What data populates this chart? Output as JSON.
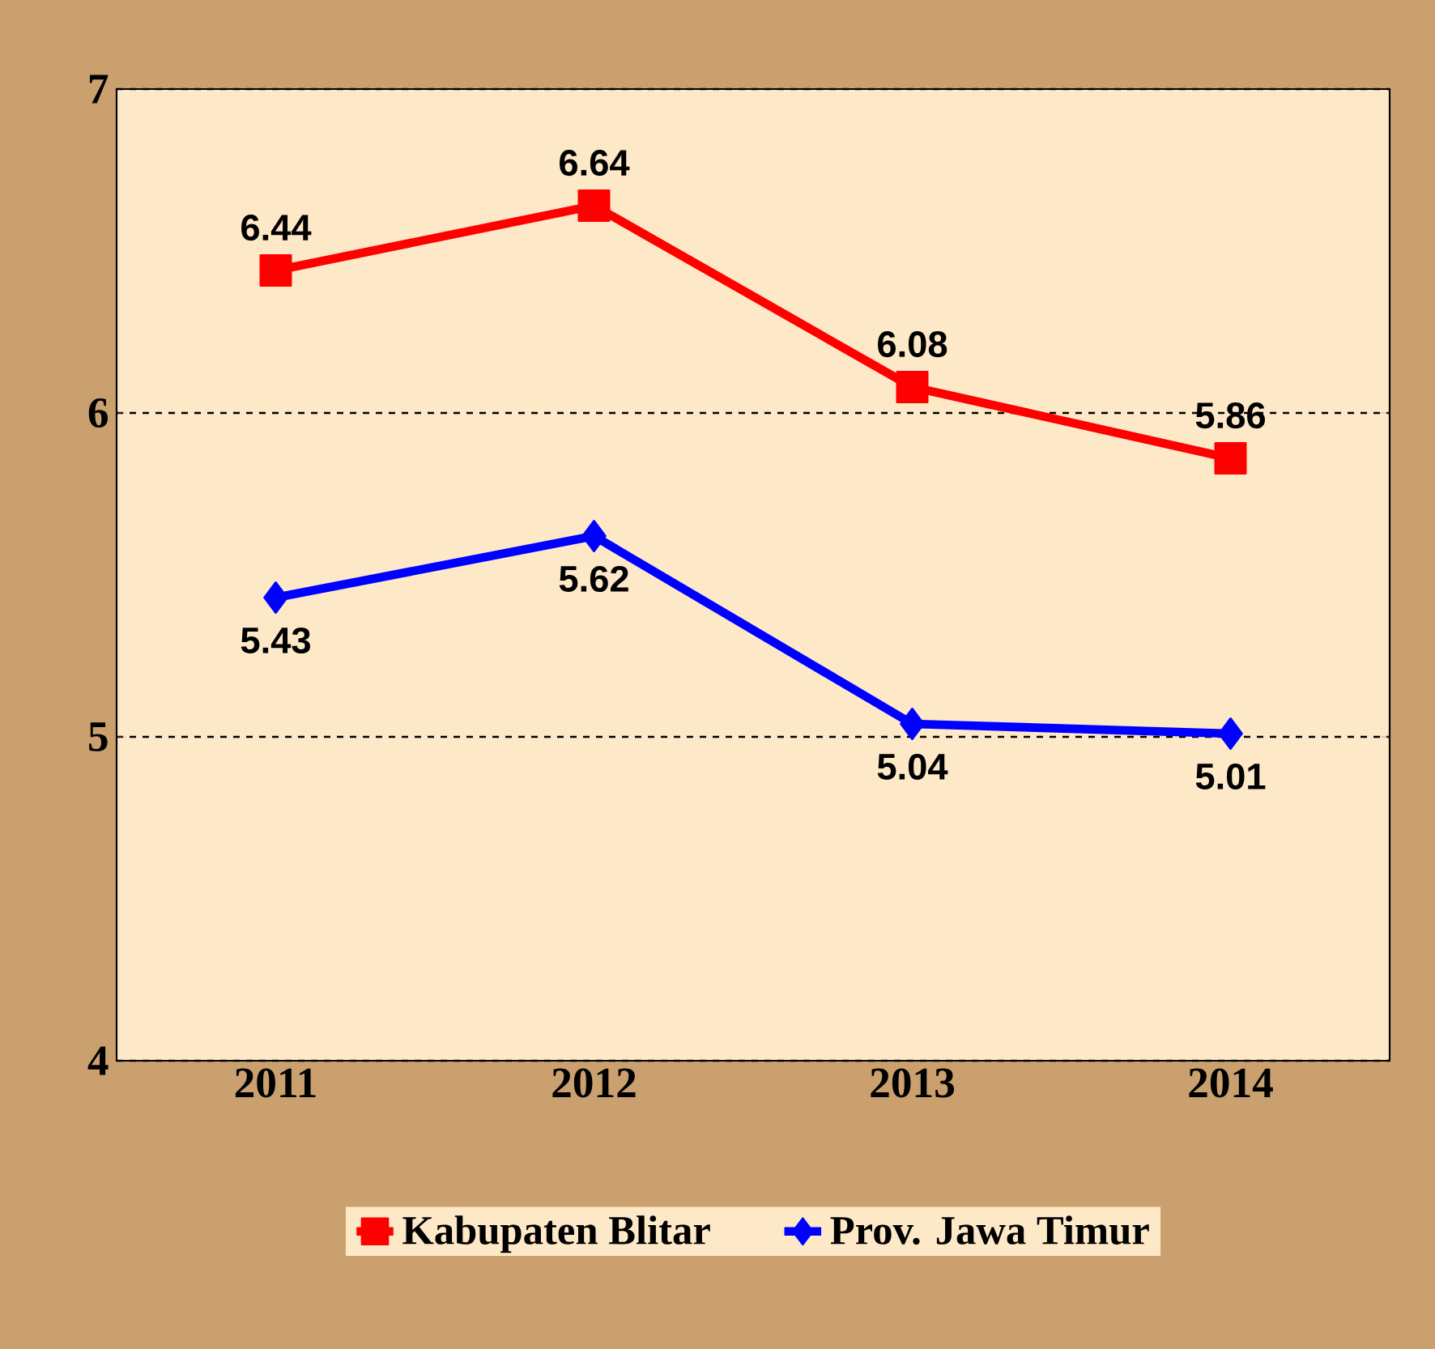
{
  "chart_data": {
    "type": "line",
    "categories": [
      "2011",
      "2012",
      "2013",
      "2014"
    ],
    "series": [
      {
        "name": "Kabupaten Blitar",
        "color": "#ff0000",
        "marker": "square",
        "values": [
          6.44,
          6.64,
          6.08,
          5.86
        ]
      },
      {
        "name": "Prov. Jawa Timur",
        "color": "#0000ff",
        "marker": "diamond",
        "values": [
          5.43,
          5.62,
          5.04,
          5.01
        ]
      }
    ],
    "ylim": [
      4,
      7
    ],
    "yticks": [
      4,
      5,
      6,
      7
    ],
    "grid": "y",
    "legend": "bottom",
    "data_labels": true
  }
}
